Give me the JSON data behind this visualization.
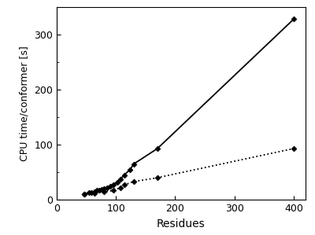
{
  "solid_x": [
    46,
    55,
    58,
    64,
    68,
    72,
    76,
    80,
    85,
    90,
    96,
    103,
    108,
    114,
    124,
    130,
    170,
    400
  ],
  "solid_y": [
    10,
    13,
    13,
    15,
    17,
    18,
    19,
    20,
    22,
    25,
    28,
    32,
    38,
    45,
    55,
    65,
    93,
    328
  ],
  "dotted_x": [
    46,
    64,
    80,
    96,
    108,
    114,
    130,
    170,
    400
  ],
  "dotted_y": [
    10,
    12,
    14,
    17,
    22,
    27,
    33,
    40,
    93
  ],
  "xlabel": "Residues",
  "ylabel": "CPU time/conformer [s]",
  "xlim": [
    0,
    420
  ],
  "ylim": [
    0,
    350
  ],
  "xticks": [
    0,
    100,
    200,
    300,
    400
  ],
  "yticks": [
    0,
    100,
    200,
    300
  ],
  "marker": "D",
  "marker_size": 3.5,
  "line_color": "#000000",
  "background_color": "#ffffff",
  "solid_linewidth": 1.3,
  "dotted_linewidth": 1.3,
  "xlabel_fontsize": 10,
  "ylabel_fontsize": 9,
  "tick_labelsize": 9
}
